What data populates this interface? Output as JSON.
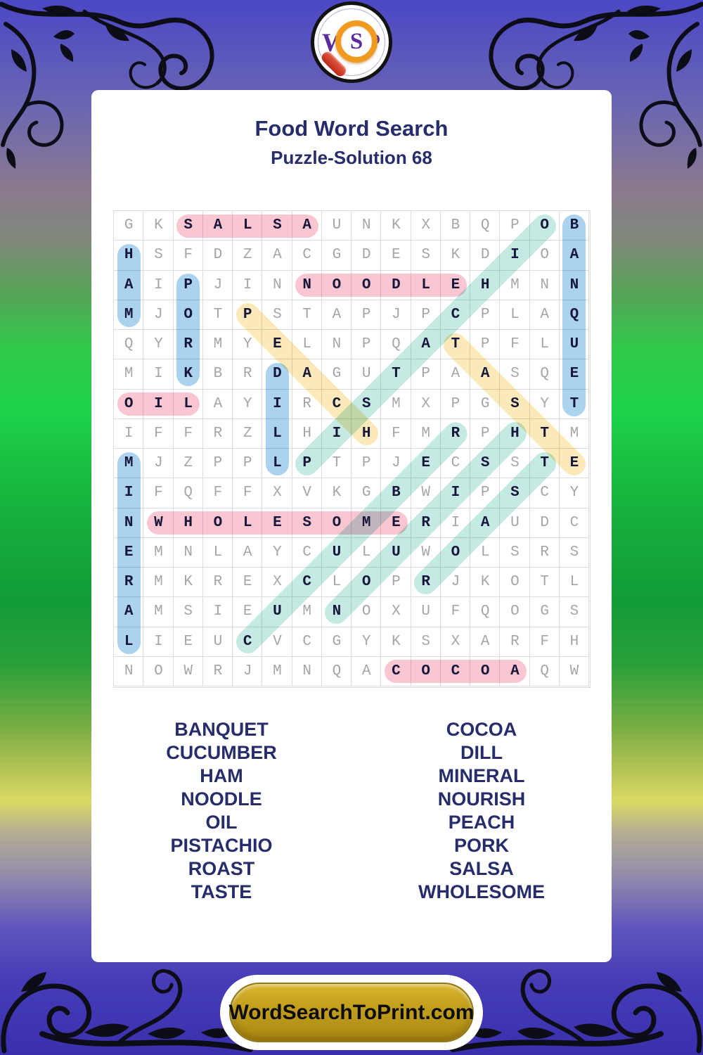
{
  "page": {
    "title": "Food Word Search",
    "subtitle": "Puzzle-Solution 68"
  },
  "logo": {
    "letters": [
      "W",
      "S",
      "P"
    ]
  },
  "footer": {
    "site_label": "WordSearchToPrint.com"
  },
  "word_list": {
    "left": [
      "BANQUET",
      "CUCUMBER",
      "HAM",
      "NOODLE",
      "OIL",
      "PISTACHIO",
      "ROAST",
      "TASTE"
    ],
    "right": [
      "COCOA",
      "DILL",
      "MINERAL",
      "NOURISH",
      "PEACH",
      "PORK",
      "SALSA",
      "WHOLESOME"
    ]
  },
  "grid": {
    "size": 16,
    "rows": [
      "GKSALSAUNKXBQPOB",
      "HSFDZACGDESKDIOA",
      "AIPJINNOODLEHMNN",
      "MJOTPSTAPJPCPLAQ",
      "QYRMYELNPQATPFLU",
      "MIKBRDAGUTPAASQE",
      "OILAYIRCSMXPGSYT",
      "IFFRZLHIHFMRPHTM",
      "MJZPPLPTPJECSSTE",
      "IFQFFXVKGBWIPSCY",
      "NWHOLESOMERIAUDC",
      "EMNLAYCULUWOLSRS",
      "RMKREXCLOPRJKOTL",
      "AMSIEUMNOXUFQOGS",
      "LIEUCVCGYKSXARFH",
      "NOWRJMNQACOCOAQW"
    ],
    "highlight_colors": {
      "pink": "#F9C6D2",
      "blue": "#ABD3F0",
      "teal": "#C5EAE4",
      "yellow": "#FBE9B9"
    },
    "placements": [
      {
        "word": "SALSA",
        "row": 1,
        "col": 3,
        "dir": "E",
        "color": "pink"
      },
      {
        "word": "NOODLE",
        "row": 3,
        "col": 7,
        "dir": "E",
        "color": "pink"
      },
      {
        "word": "OIL",
        "row": 7,
        "col": 1,
        "dir": "E",
        "color": "pink"
      },
      {
        "word": "WHOLESOME",
        "row": 11,
        "col": 2,
        "dir": "E",
        "color": "pink"
      },
      {
        "word": "COCOA",
        "row": 16,
        "col": 10,
        "dir": "E",
        "color": "pink"
      },
      {
        "word": "HAM",
        "row": 2,
        "col": 1,
        "dir": "S",
        "color": "blue"
      },
      {
        "word": "PORK",
        "row": 3,
        "col": 3,
        "dir": "S",
        "color": "blue"
      },
      {
        "word": "DILL",
        "row": 6,
        "col": 6,
        "dir": "S",
        "color": "blue"
      },
      {
        "word": "BANQUET",
        "row": 1,
        "col": 16,
        "dir": "S",
        "color": "blue"
      },
      {
        "word": "MINERAL",
        "row": 9,
        "col": 1,
        "dir": "S",
        "color": "blue"
      },
      {
        "word": "PEACH",
        "row": 4,
        "col": 5,
        "dir": "SE",
        "color": "yellow"
      },
      {
        "word": "TASTE",
        "row": 5,
        "col": 12,
        "dir": "SE",
        "color": "yellow"
      },
      {
        "word": "PISTACHIO",
        "row": 9,
        "col": 7,
        "dir": "NE",
        "color": "teal"
      },
      {
        "word": "CUCUMBER",
        "row": 15,
        "col": 5,
        "dir": "NE",
        "color": "teal"
      },
      {
        "word": "NOURISH",
        "row": 14,
        "col": 8,
        "dir": "NE",
        "color": "teal"
      },
      {
        "word": "ROAST",
        "row": 13,
        "col": 11,
        "dir": "NE",
        "color": "teal"
      }
    ]
  },
  "colors": {
    "title_navy": "#272C6B",
    "letter_gray": "#A6A6A6",
    "letter_bold": "#17173B",
    "logo_purple": "#5B2C9B",
    "button_gold": "#BE9B1B"
  }
}
